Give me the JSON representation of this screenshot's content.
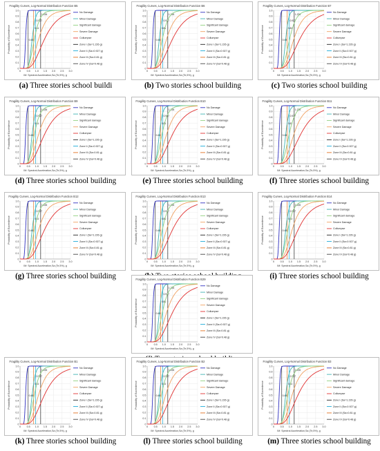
{
  "figure": {
    "legend_labels": [
      "No Damage",
      "Minor Damage",
      "Significant damage",
      "Severe Damage",
      "Collumpse",
      "Zone I (Sa=1.226 g)",
      "Zone II (Sa=0.927 g)",
      "Zone III (Sa=0.81 g)",
      "Zone IV (Sa=0.48 g)"
    ],
    "xlabel": "IM: Spectral Acceleration,Sa (Te,5%), g",
    "ylabel": "Probability of Exceedence",
    "zone_labels": [
      "1.226",
      "0.927",
      "0.81",
      "0.48"
    ],
    "colors": {
      "no_damage": "#2f2fbf",
      "minor_damage": "#3fb3b3",
      "significant_damage": "#8fd07f",
      "severe_damage": "#f0a060",
      "collapse": "#e03030",
      "zone_1": "#222222",
      "zone_2": "#17a8d6",
      "zone_3": "#e07020",
      "zone_4": "#444444"
    }
  },
  "panels": [
    {
      "letter": "(a)",
      "caption": "Three stories school buildi",
      "chart_data": {
        "type": "line",
        "title": "Fragility Curves, Log-Normal Distribution Function B5",
        "xlim": [
          0,
          3
        ],
        "ylim": [
          0,
          1
        ],
        "zones": [
          1.226,
          0.927,
          0.81,
          0.48
        ],
        "series": [
          {
            "name": "No Damage",
            "median": 0.33,
            "beta": 0.18
          },
          {
            "name": "Minor Damage",
            "median": 0.72,
            "beta": 0.22
          },
          {
            "name": "Significant damage",
            "median": 0.85,
            "beta": 0.32
          },
          {
            "name": "Severe Damage",
            "median": 1.1,
            "beta": 0.38
          },
          {
            "name": "Collumpse",
            "median": 1.45,
            "beta": 0.45
          }
        ]
      }
    },
    {
      "letter": "(b)",
      "caption": "Two stories school building",
      "chart_data": {
        "type": "line",
        "title": "Fragility Curves, Log-Normal Distribution Function B6",
        "xlim": [
          0,
          3
        ],
        "ylim": [
          0,
          1
        ],
        "zones": [
          1.226,
          0.927,
          0.81,
          0.48
        ],
        "series": [
          {
            "name": "No Damage",
            "median": 0.33,
            "beta": 0.17
          },
          {
            "name": "Minor Damage",
            "median": 0.72,
            "beta": 0.2
          },
          {
            "name": "Significant damage",
            "median": 0.9,
            "beta": 0.32
          },
          {
            "name": "Severe Damage",
            "median": 1.15,
            "beta": 0.38
          },
          {
            "name": "Collumpse",
            "median": 1.5,
            "beta": 0.45
          }
        ]
      }
    },
    {
      "letter": "(c)",
      "caption": "Two stories school building",
      "chart_data": {
        "type": "line",
        "title": "Fragility Curves, Log-Normal Distribution Function B7",
        "xlim": [
          0,
          3
        ],
        "ylim": [
          0,
          1
        ],
        "zones": [
          1.226,
          0.927,
          0.81,
          0.48
        ],
        "series": [
          {
            "name": "No Damage",
            "median": 0.33,
            "beta": 0.17
          },
          {
            "name": "Minor Damage",
            "median": 0.72,
            "beta": 0.2
          },
          {
            "name": "Significant damage",
            "median": 0.95,
            "beta": 0.33
          },
          {
            "name": "Severe Damage",
            "median": 1.2,
            "beta": 0.38
          },
          {
            "name": "Collumpse",
            "median": 1.55,
            "beta": 0.45
          }
        ]
      }
    },
    {
      "letter": "(d)",
      "caption": "Three stories school building",
      "chart_data": {
        "type": "line",
        "title": "Fragility Curves, Log-Normal Distribution Function B9",
        "xlim": [
          0,
          3
        ],
        "ylim": [
          0,
          1
        ],
        "zones": [
          1.226,
          0.927,
          0.81,
          0.48
        ],
        "series": [
          {
            "name": "No Damage",
            "median": 0.33,
            "beta": 0.18
          },
          {
            "name": "Minor Damage",
            "median": 0.72,
            "beta": 0.22
          },
          {
            "name": "Significant damage",
            "median": 0.85,
            "beta": 0.32
          },
          {
            "name": "Severe Damage",
            "median": 1.1,
            "beta": 0.38
          },
          {
            "name": "Collumpse",
            "median": 1.45,
            "beta": 0.45
          }
        ]
      }
    },
    {
      "letter": "(e)",
      "caption": "Three stories school building",
      "chart_data": {
        "type": "line",
        "title": "Fragility Curves, Log-Normal Distribution Function B10",
        "xlim": [
          0,
          3
        ],
        "ylim": [
          0,
          1
        ],
        "zones": [
          1.226,
          0.927,
          0.81,
          0.48
        ],
        "series": [
          {
            "name": "No Damage",
            "median": 0.33,
            "beta": 0.18
          },
          {
            "name": "Minor Damage",
            "median": 0.72,
            "beta": 0.22
          },
          {
            "name": "Significant damage",
            "median": 0.88,
            "beta": 0.32
          },
          {
            "name": "Severe Damage",
            "median": 1.15,
            "beta": 0.38
          },
          {
            "name": "Collumpse",
            "median": 1.5,
            "beta": 0.45
          }
        ]
      }
    },
    {
      "letter": "(f)",
      "caption": "Three stories school building",
      "chart_data": {
        "type": "line",
        "title": "Fragility Curves, Log-Normal Distribution Function B11",
        "xlim": [
          0,
          3
        ],
        "ylim": [
          0,
          1
        ],
        "zones": [
          1.226,
          0.927,
          0.81,
          0.48
        ],
        "series": [
          {
            "name": "No Damage",
            "median": 0.33,
            "beta": 0.18
          },
          {
            "name": "Minor Damage",
            "median": 0.72,
            "beta": 0.22
          },
          {
            "name": "Significant damage",
            "median": 0.92,
            "beta": 0.33
          },
          {
            "name": "Severe Damage",
            "median": 1.2,
            "beta": 0.38
          },
          {
            "name": "Collumpse",
            "median": 1.6,
            "beta": 0.45
          }
        ]
      }
    },
    {
      "letter": "(g)",
      "caption": "Three stories school building",
      "chart_data": {
        "type": "line",
        "title": "Fragility Curves, Log-Normal Distribution Function B12",
        "xlim": [
          0,
          3
        ],
        "ylim": [
          0,
          1
        ],
        "zones": [
          1.226,
          0.927,
          0.81,
          0.48
        ],
        "series": [
          {
            "name": "No Damage",
            "median": 0.33,
            "beta": 0.18
          },
          {
            "name": "Minor Damage",
            "median": 0.72,
            "beta": 0.22
          },
          {
            "name": "Significant damage",
            "median": 0.85,
            "beta": 0.32
          },
          {
            "name": "Severe Damage",
            "median": 1.1,
            "beta": 0.38
          },
          {
            "name": "Collumpse",
            "median": 1.45,
            "beta": 0.45
          }
        ]
      }
    },
    {
      "letter": "(h)",
      "caption": "Two stories school building",
      "chart_data": {
        "type": "line",
        "title": "Fragility Curves, Log-Normal Distribution Function B13",
        "xlim": [
          0,
          3
        ],
        "ylim": [
          0,
          1
        ],
        "zones": [
          1.226,
          0.927,
          0.81,
          0.48
        ],
        "series": [
          {
            "name": "No Damage",
            "median": 0.33,
            "beta": 0.17
          },
          {
            "name": "Minor Damage",
            "median": 0.72,
            "beta": 0.2
          },
          {
            "name": "Significant damage",
            "median": 0.9,
            "beta": 0.32
          },
          {
            "name": "Severe Damage",
            "median": 1.15,
            "beta": 0.38
          },
          {
            "name": "Collumpse",
            "median": 1.5,
            "beta": 0.45
          }
        ]
      }
    },
    {
      "letter": "(i)",
      "caption": "Three stories school building",
      "chart_data": {
        "type": "line",
        "title": "Fragility Curves, Log-Normal Distribution Function B14",
        "xlim": [
          0,
          3
        ],
        "ylim": [
          0,
          1
        ],
        "zones": [
          1.226,
          0.927,
          0.81,
          0.48
        ],
        "series": [
          {
            "name": "No Damage",
            "median": 0.33,
            "beta": 0.18
          },
          {
            "name": "Minor Damage",
            "median": 0.72,
            "beta": 0.22
          },
          {
            "name": "Significant damage",
            "median": 0.85,
            "beta": 0.32
          },
          {
            "name": "Severe Damage",
            "median": 1.1,
            "beta": 0.38
          },
          {
            "name": "Collumpse",
            "median": 1.45,
            "beta": 0.45
          }
        ]
      }
    },
    {
      "letter": "(j)",
      "caption": "Two stories school building",
      "chart_data": {
        "type": "line",
        "title": "Fragility Curves, Log-Normal Distribution Function B29",
        "xlim": [
          0,
          3
        ],
        "ylim": [
          0,
          1
        ],
        "zones": [
          1.226,
          0.927,
          0.81,
          0.48
        ],
        "series": [
          {
            "name": "No Damage",
            "median": 0.33,
            "beta": 0.17
          },
          {
            "name": "Minor Damage",
            "median": 0.72,
            "beta": 0.2
          },
          {
            "name": "Significant damage",
            "median": 0.9,
            "beta": 0.32
          },
          {
            "name": "Severe Damage",
            "median": 1.15,
            "beta": 0.38
          },
          {
            "name": "Collumpse",
            "median": 1.5,
            "beta": 0.45
          }
        ]
      }
    },
    {
      "letter": "(k)",
      "caption": "Three stories school building",
      "chart_data": {
        "type": "line",
        "title": "Fragility Curves, Log-Normal Distribution Function B1",
        "xlim": [
          0,
          3
        ],
        "ylim": [
          0,
          1
        ],
        "zones": [
          1.226,
          0.927,
          0.81,
          0.48
        ],
        "series": [
          {
            "name": "No Damage",
            "median": 0.33,
            "beta": 0.18
          },
          {
            "name": "Minor Damage",
            "median": 0.72,
            "beta": 0.22
          },
          {
            "name": "Significant damage",
            "median": 0.85,
            "beta": 0.32
          },
          {
            "name": "Severe Damage",
            "median": 1.1,
            "beta": 0.38
          },
          {
            "name": "Collumpse",
            "median": 1.45,
            "beta": 0.45
          }
        ]
      }
    },
    {
      "letter": "(l)",
      "caption": "Three stories school building",
      "chart_data": {
        "type": "line",
        "title": "Fragility Curves, Log-Normal Distribution Function B2",
        "xlim": [
          0,
          3
        ],
        "ylim": [
          0,
          1
        ],
        "zones": [
          1.226,
          0.927,
          0.81,
          0.48
        ],
        "series": [
          {
            "name": "No Damage",
            "median": 0.33,
            "beta": 0.18
          },
          {
            "name": "Minor Damage",
            "median": 0.72,
            "beta": 0.22
          },
          {
            "name": "Significant damage",
            "median": 0.85,
            "beta": 0.32
          },
          {
            "name": "Severe Damage",
            "median": 1.1,
            "beta": 0.38
          },
          {
            "name": "Collumpse",
            "median": 1.45,
            "beta": 0.45
          }
        ]
      }
    },
    {
      "letter": "(m)",
      "caption": "Three stories school building",
      "chart_data": {
        "type": "line",
        "title": "Fragility Curves, Log-Normal Distribution Function B3",
        "xlim": [
          0,
          3
        ],
        "ylim": [
          0,
          1
        ],
        "zones": [
          1.226,
          0.927,
          0.81,
          0.48
        ],
        "series": [
          {
            "name": "No Damage",
            "median": 0.33,
            "beta": 0.18
          },
          {
            "name": "Minor Damage",
            "median": 0.72,
            "beta": 0.22
          },
          {
            "name": "Significant damage",
            "median": 0.85,
            "beta": 0.32
          },
          {
            "name": "Severe Damage",
            "median": 1.1,
            "beta": 0.38
          },
          {
            "name": "Collumpse",
            "median": 1.45,
            "beta": 0.45
          }
        ]
      }
    }
  ],
  "chart_data": {
    "type": "line",
    "note_series_model": "each series is a log-normal CDF defined by median (g) and dispersion beta",
    "xlim": [
      0,
      3
    ],
    "ylim": [
      0,
      1
    ],
    "xticks": [
      "0",
      "0.5",
      "1.0",
      "1.5",
      "2.0",
      "2.5",
      "3.0"
    ],
    "yticks": [
      "0",
      "0.1",
      "0.2",
      "0.3",
      "0.4",
      "0.5",
      "0.6",
      "0.7",
      "0.8",
      "0.9",
      "1.0"
    ],
    "grid": true,
    "legend_position": "right"
  }
}
